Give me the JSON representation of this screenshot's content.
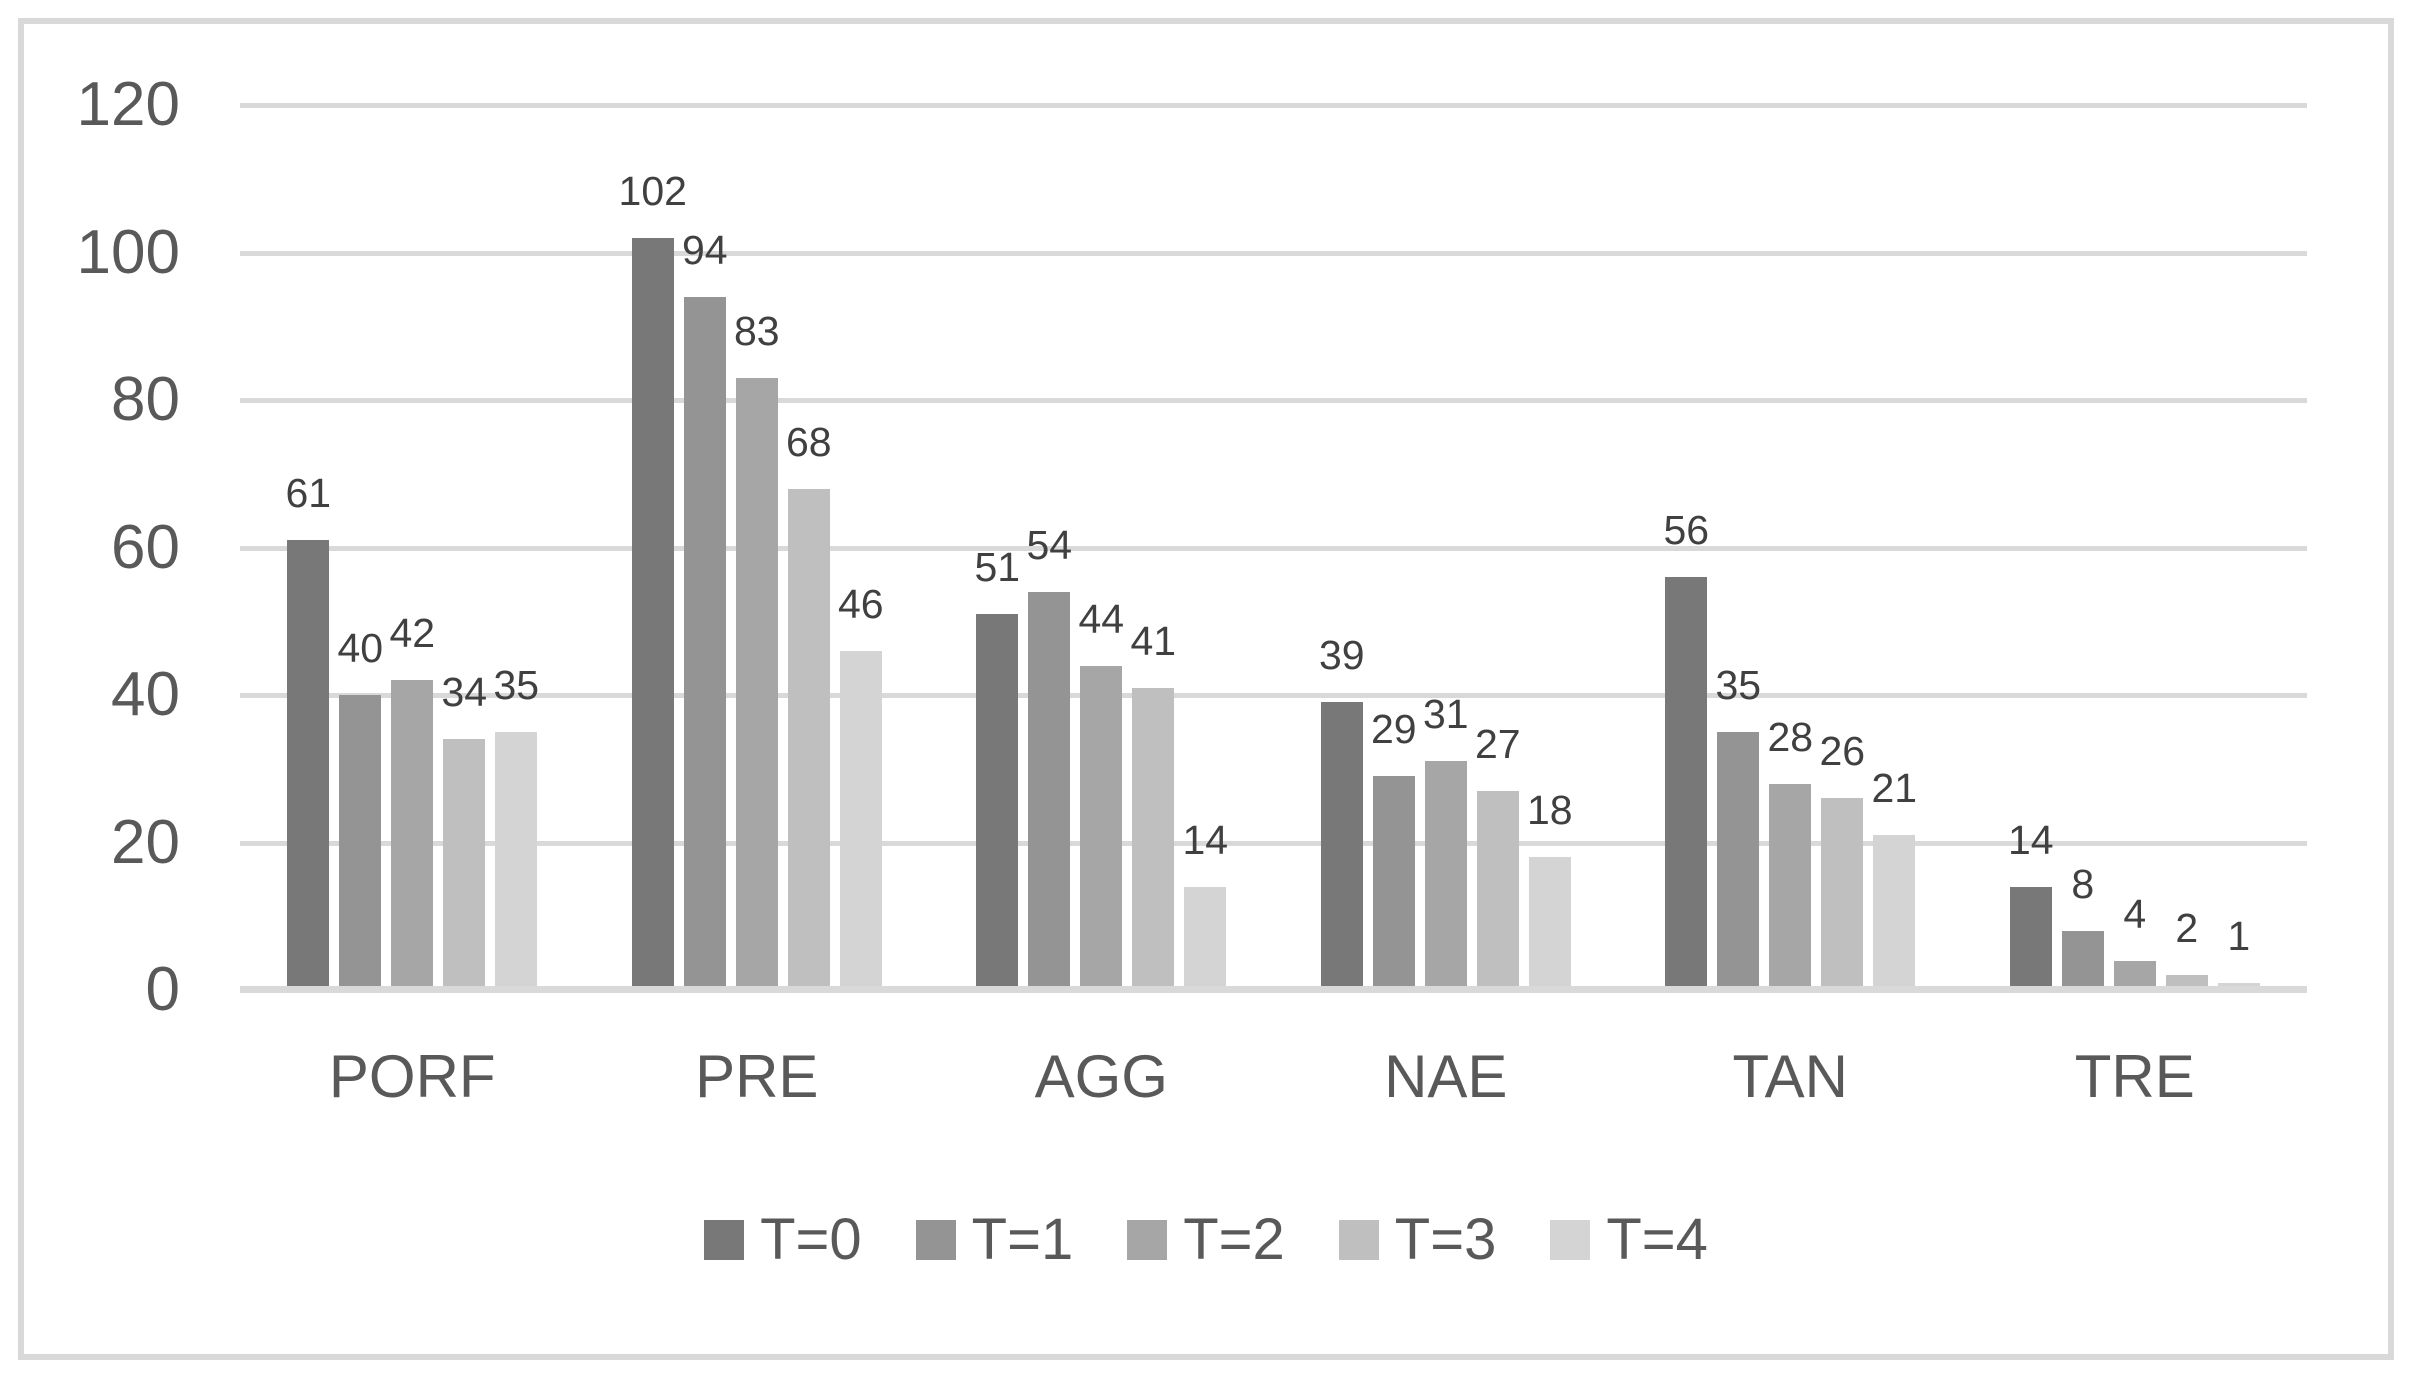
{
  "chart_data": {
    "type": "bar",
    "title": "",
    "xlabel": "",
    "ylabel": "",
    "categories": [
      "PORF",
      "PRE",
      "AGG",
      "NAE",
      "TAN",
      "TRE"
    ],
    "series": [
      {
        "name": "T=0",
        "color": "#787878",
        "values": [
          61,
          102,
          51,
          39,
          56,
          14
        ]
      },
      {
        "name": "T=1",
        "color": "#949494",
        "values": [
          40,
          94,
          54,
          29,
          35,
          8
        ]
      },
      {
        "name": "T=2",
        "color": "#a6a6a6",
        "values": [
          42,
          83,
          44,
          31,
          28,
          4
        ]
      },
      {
        "name": "T=3",
        "color": "#bfbfbf",
        "values": [
          34,
          68,
          41,
          27,
          26,
          2
        ]
      },
      {
        "name": "T=4",
        "color": "#d4d4d4",
        "values": [
          35,
          46,
          14,
          18,
          21,
          1
        ]
      }
    ],
    "ylim": [
      0,
      120
    ],
    "yticks": [
      0,
      20,
      40,
      60,
      80,
      100,
      120
    ],
    "grid": true,
    "data_labels": true,
    "legend_position": "bottom"
  },
  "style_colors": {
    "gridline": "#d9d9d9",
    "axis_line": "#d9d9d9",
    "chart_border": "#d9d9d9",
    "tick_text": "#595959",
    "data_label_text": "#404040",
    "background": "#ffffff"
  }
}
